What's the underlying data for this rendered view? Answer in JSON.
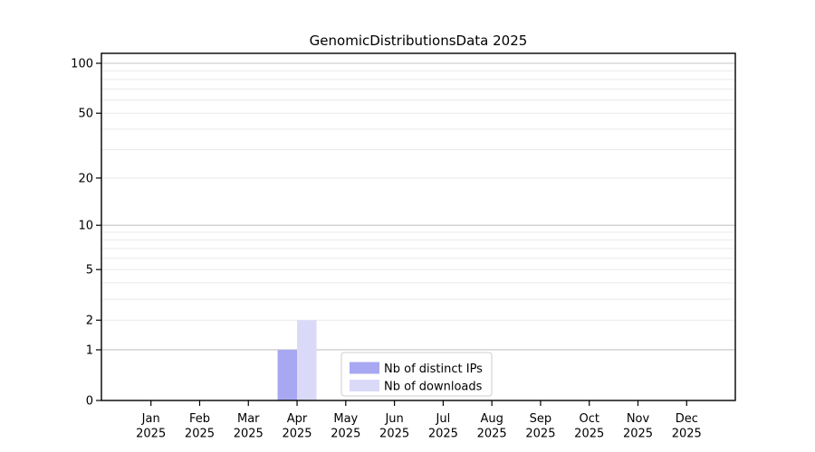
{
  "figure": {
    "title": "GenomicDistributionsData 2025"
  },
  "chart_data": {
    "type": "bar",
    "title": "GenomicDistributionsData 2025",
    "categories": [
      "Jan",
      "Feb",
      "Mar",
      "Apr",
      "May",
      "Jun",
      "Jul",
      "Aug",
      "Sep",
      "Oct",
      "Nov",
      "Dec"
    ],
    "category_year": "2025",
    "series": [
      {
        "name": "Nb of distinct IPs",
        "color": "#a8a8f2",
        "values": [
          0,
          0,
          0,
          1,
          0,
          0,
          0,
          0,
          0,
          0,
          0,
          0
        ]
      },
      {
        "name": "Nb of downloads",
        "color": "#dadaf8",
        "values": [
          0,
          0,
          0,
          2,
          0,
          0,
          0,
          0,
          0,
          0,
          0,
          0
        ]
      }
    ],
    "xlabel": "",
    "ylabel": "",
    "yscale": "log1p",
    "ylim": [
      0,
      113
    ],
    "yticks": [
      0,
      1,
      2,
      5,
      10,
      20,
      50,
      100
    ],
    "major_gridlines": [
      1,
      10,
      100
    ],
    "minor_gridlines": [
      2,
      3,
      4,
      5,
      6,
      7,
      8,
      9,
      20,
      30,
      40,
      50,
      60,
      70,
      80,
      90
    ],
    "grid": "horizontal",
    "legend": {
      "position": "lower center",
      "entries": [
        "Nb of distinct IPs",
        "Nb of downloads"
      ]
    },
    "colors": {
      "spine": "#000000",
      "major_grid": "#c4c4c4",
      "minor_grid": "#e9e9e9",
      "legend_border": "#cccccc",
      "legend_background": "#ffffff"
    }
  }
}
